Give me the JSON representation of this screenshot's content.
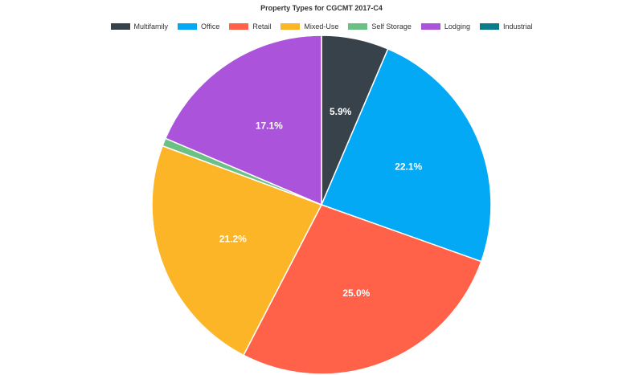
{
  "chart_data": {
    "type": "pie",
    "title": "Property Types for CGCMT 2017-C4",
    "legend_placement": "top",
    "slices": [
      {
        "name": "Multifamily",
        "value": 5.9,
        "label": "5.9%",
        "color": "#37424a"
      },
      {
        "name": "Office",
        "value": 22.1,
        "label": "22.1%",
        "color": "#03a9f4"
      },
      {
        "name": "Retail",
        "value": 25.0,
        "label": "25.0%",
        "color": "#ff6149"
      },
      {
        "name": "Mixed-Use",
        "value": 21.2,
        "label": "21.2%",
        "color": "#fbb526"
      },
      {
        "name": "Self Storage",
        "value": 0.7,
        "label": "",
        "color": "#6ac183"
      },
      {
        "name": "Lodging",
        "value": 17.1,
        "label": "17.1%",
        "color": "#ab53db"
      },
      {
        "name": "Industrial",
        "value": 0.0,
        "label": "",
        "color": "#0b7c8b"
      }
    ]
  }
}
